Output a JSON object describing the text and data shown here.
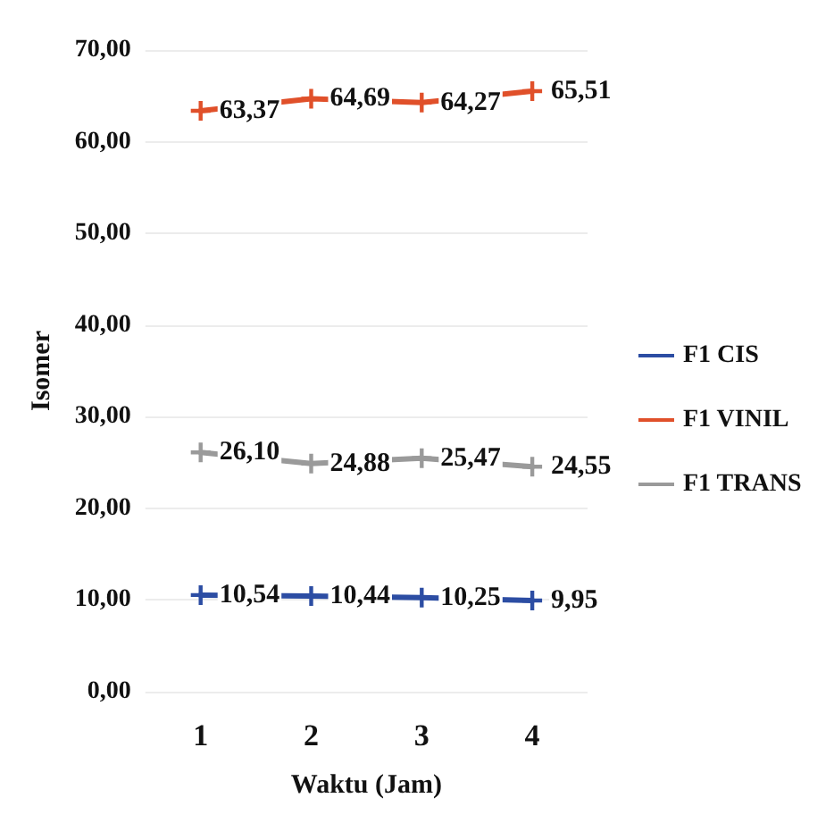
{
  "chart_data": {
    "type": "line",
    "xlabel": "Waktu (Jam)",
    "ylabel": "Isomer",
    "categories": [
      "1",
      "2",
      "3",
      "4"
    ],
    "series": [
      {
        "name": "F1 CIS",
        "color": "#2c4da3",
        "values": [
          10.54,
          10.44,
          10.25,
          9.95
        ],
        "value_labels": [
          "10,54",
          "10,44",
          "10,25",
          "9,95"
        ]
      },
      {
        "name": "F1 VINIL",
        "color": "#e0502a",
        "values": [
          63.37,
          64.69,
          64.27,
          65.51
        ],
        "value_labels": [
          "63,37",
          "64,69",
          "64,27",
          "65,51"
        ]
      },
      {
        "name": "F1 TRANS",
        "color": "#9a9a9a",
        "values": [
          26.1,
          24.88,
          25.47,
          24.55
        ],
        "value_labels": [
          "26,10",
          "24,88",
          "25,47",
          "24,55"
        ]
      }
    ],
    "ylim": [
      0,
      70
    ],
    "yticks": [
      {
        "value": 0,
        "label": "0,00"
      },
      {
        "value": 10,
        "label": "10,00"
      },
      {
        "value": 20,
        "label": "20,00"
      },
      {
        "value": 30,
        "label": "30,00"
      },
      {
        "value": 40,
        "label": "40,00"
      },
      {
        "value": 50,
        "label": "50,00"
      },
      {
        "value": 60,
        "label": "60,00"
      },
      {
        "value": 70,
        "label": "70,00"
      }
    ],
    "grid": "y",
    "legend": "right",
    "marker": "cross",
    "line_style": "solid"
  }
}
